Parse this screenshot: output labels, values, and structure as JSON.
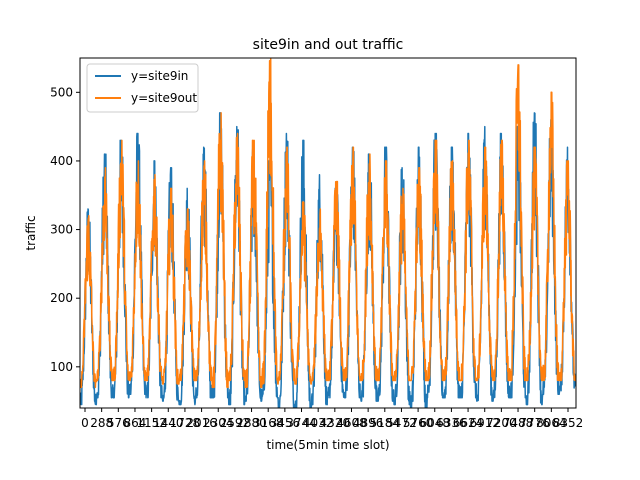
{
  "chart_data": {
    "type": "line",
    "title": "site9in and out traffic",
    "xlabel": "time(5min time slot)",
    "ylabel": "traffic",
    "xlim": [
      0,
      4400
    ],
    "ylim": [
      40,
      550
    ],
    "x_tick_labels": [
      "0",
      "288",
      "576",
      "864",
      "1152",
      "1440",
      "1728",
      "2016",
      "2304",
      "2592",
      "2880",
      "3168",
      "3456",
      "3744",
      "4032",
      "4320",
      "4608",
      "4896",
      "5184",
      "5472",
      "5760",
      "6048",
      "6336",
      "6624",
      "6912",
      "7200",
      "7488",
      "7776",
      "8064",
      "8352"
    ],
    "y_ticks": [
      100,
      200,
      300,
      400,
      500
    ],
    "legend": {
      "position": "top-left",
      "entries": [
        "y=site9in",
        "y=site9out"
      ]
    },
    "grid": false,
    "series": [
      {
        "name": "y=site9in",
        "color": "#1f77b4",
        "cycle_minmax": [
          [
            45,
            330
          ],
          [
            55,
            410
          ],
          [
            55,
            430
          ],
          [
            60,
            440
          ],
          [
            55,
            400
          ],
          [
            50,
            390
          ],
          [
            45,
            360
          ],
          [
            55,
            420
          ],
          [
            55,
            470
          ],
          [
            45,
            450
          ],
          [
            50,
            420
          ],
          [
            55,
            400
          ],
          [
            40,
            440
          ],
          [
            40,
            430
          ],
          [
            45,
            380
          ],
          [
            55,
            360
          ],
          [
            55,
            420
          ],
          [
            50,
            410
          ],
          [
            50,
            420
          ],
          [
            45,
            390
          ],
          [
            40,
            420
          ],
          [
            55,
            440
          ],
          [
            55,
            420
          ],
          [
            55,
            440
          ],
          [
            50,
            450
          ],
          [
            55,
            440
          ],
          [
            55,
            450
          ],
          [
            45,
            470
          ],
          [
            60,
            460
          ],
          [
            65,
            420
          ]
        ]
      },
      {
        "name": "y=site9out",
        "color": "#ff7f0e",
        "cycle_minmax": [
          [
            70,
            320
          ],
          [
            80,
            390
          ],
          [
            80,
            430
          ],
          [
            80,
            400
          ],
          [
            80,
            380
          ],
          [
            75,
            360
          ],
          [
            80,
            330
          ],
          [
            80,
            400
          ],
          [
            70,
            470
          ],
          [
            80,
            440
          ],
          [
            70,
            430
          ],
          [
            75,
            550
          ],
          [
            80,
            420
          ],
          [
            75,
            340
          ],
          [
            80,
            330
          ],
          [
            80,
            370
          ],
          [
            80,
            420
          ],
          [
            80,
            410
          ],
          [
            80,
            400
          ],
          [
            80,
            360
          ],
          [
            80,
            390
          ],
          [
            80,
            430
          ],
          [
            80,
            400
          ],
          [
            80,
            430
          ],
          [
            80,
            420
          ],
          [
            80,
            430
          ],
          [
            80,
            540
          ],
          [
            80,
            420
          ],
          [
            80,
            500
          ],
          [
            80,
            400
          ]
        ]
      }
    ]
  }
}
